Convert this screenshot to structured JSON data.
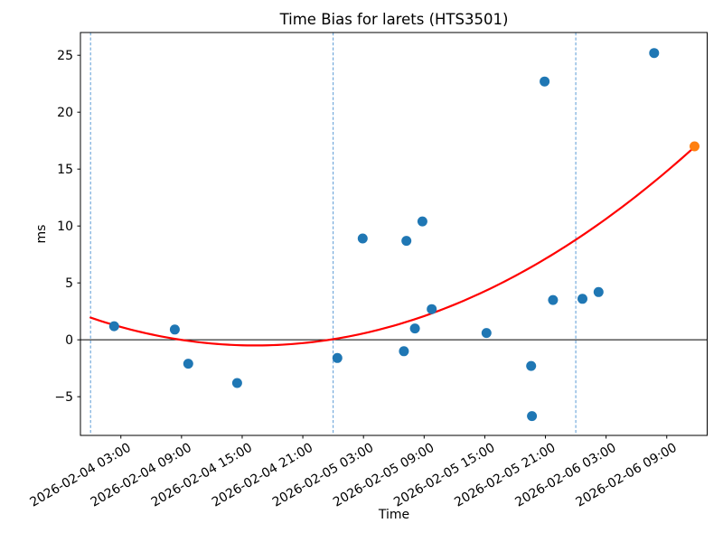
{
  "chart_data": {
    "type": "scatter",
    "title": "Time Bias for larets (HTS3501)",
    "xlabel": "Time",
    "ylabel": "ms",
    "epoch": "2026-02-04 00:00",
    "xlim": [
      "2026-02-03 23:00",
      "2026-02-06 13:00"
    ],
    "ylim": [
      -8.4,
      27.0
    ],
    "grid": false,
    "legend": "none",
    "x_tick_labels": [
      "2026-02-04 03:00",
      "2026-02-04 09:00",
      "2026-02-04 15:00",
      "2026-02-04 21:00",
      "2026-02-05 03:00",
      "2026-02-05 09:00",
      "2026-02-05 15:00",
      "2026-02-05 21:00",
      "2026-02-06 03:00",
      "2026-02-06 09:00"
    ],
    "y_ticks": [
      {
        "value": -5,
        "label": "−5"
      },
      {
        "value": 0,
        "label": "0"
      },
      {
        "value": 5,
        "label": "5"
      },
      {
        "value": 10,
        "label": "10"
      },
      {
        "value": 15,
        "label": "15"
      },
      {
        "value": 20,
        "label": "20"
      },
      {
        "value": 25,
        "label": "25"
      }
    ],
    "midnight_vlines": {
      "times": [
        "2026-02-04 00:00",
        "2026-02-05 00:00",
        "2026-02-06 00:00"
      ],
      "color": "#5b9bd5",
      "style": "dashed"
    },
    "zero_line": {
      "value": 0,
      "color": "#000000"
    },
    "series": [
      {
        "name": "time-bias-observations",
        "color": "#1f77b4",
        "marker_radius": 5.5,
        "points": [
          {
            "time": "2026-02-04 02:20",
            "ms": 1.2
          },
          {
            "time": "2026-02-04 08:20",
            "ms": 0.9
          },
          {
            "time": "2026-02-04 09:40",
            "ms": -2.1
          },
          {
            "time": "2026-02-04 14:30",
            "ms": -3.8
          },
          {
            "time": "2026-02-05 00:25",
            "ms": -1.6
          },
          {
            "time": "2026-02-05 02:55",
            "ms": 8.9
          },
          {
            "time": "2026-02-05 07:00",
            "ms": -1.0
          },
          {
            "time": "2026-02-05 07:15",
            "ms": 8.7
          },
          {
            "time": "2026-02-05 08:05",
            "ms": 1.0
          },
          {
            "time": "2026-02-05 08:50",
            "ms": 10.4
          },
          {
            "time": "2026-02-05 09:45",
            "ms": 2.7
          },
          {
            "time": "2026-02-05 15:10",
            "ms": 0.6
          },
          {
            "time": "2026-02-05 19:35",
            "ms": -2.3
          },
          {
            "time": "2026-02-05 19:40",
            "ms": -6.7
          },
          {
            "time": "2026-02-05 20:55",
            "ms": 22.7
          },
          {
            "time": "2026-02-05 21:45",
            "ms": 3.5
          },
          {
            "time": "2026-02-06 00:40",
            "ms": 3.6
          },
          {
            "time": "2026-02-06 02:15",
            "ms": 4.2
          },
          {
            "time": "2026-02-06 07:45",
            "ms": 25.2
          }
        ]
      },
      {
        "name": "predicted-bias",
        "color": "#ff7f0e",
        "marker_radius": 5.5,
        "points": [
          {
            "time": "2026-02-06 11:45",
            "ms": 17.0
          }
        ]
      }
    ],
    "fit_curve": {
      "name": "quadratic-fit",
      "color": "#ff0000",
      "t_unit": "hours since 2026-02-04 00:00",
      "coeffs": {
        "a": 0.00923,
        "b": -0.3005,
        "c": 1.95
      },
      "t_range": [
        0,
        59.75
      ]
    }
  }
}
